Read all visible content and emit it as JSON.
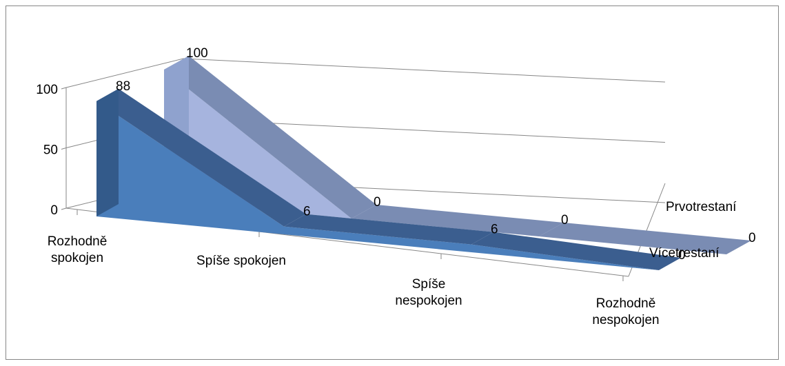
{
  "chart_data": {
    "type": "area",
    "variant": "3d-ribbon",
    "categories": [
      "Rozhodně spokojen",
      "Spíše spokojen",
      "Spíše nespokojen",
      "Rozhodně nespokojen"
    ],
    "series": [
      {
        "name": "Prvotrestaní",
        "values": [
          100,
          0,
          0,
          0
        ]
      },
      {
        "name": "Vícetrestaní",
        "values": [
          88,
          6,
          6,
          0
        ]
      }
    ],
    "ylim": [
      0,
      100
    ],
    "yticks": [
      0,
      50,
      100
    ],
    "grid": true,
    "legend": "right"
  },
  "colors": {
    "series_front": [
      "#A6B4DE",
      "#4A7EBB"
    ],
    "series_top": [
      "#7A8CB3",
      "#3B5E8F"
    ],
    "series_side": [
      "#8FA2CE",
      "#335A8A"
    ],
    "grid": "#868686"
  }
}
